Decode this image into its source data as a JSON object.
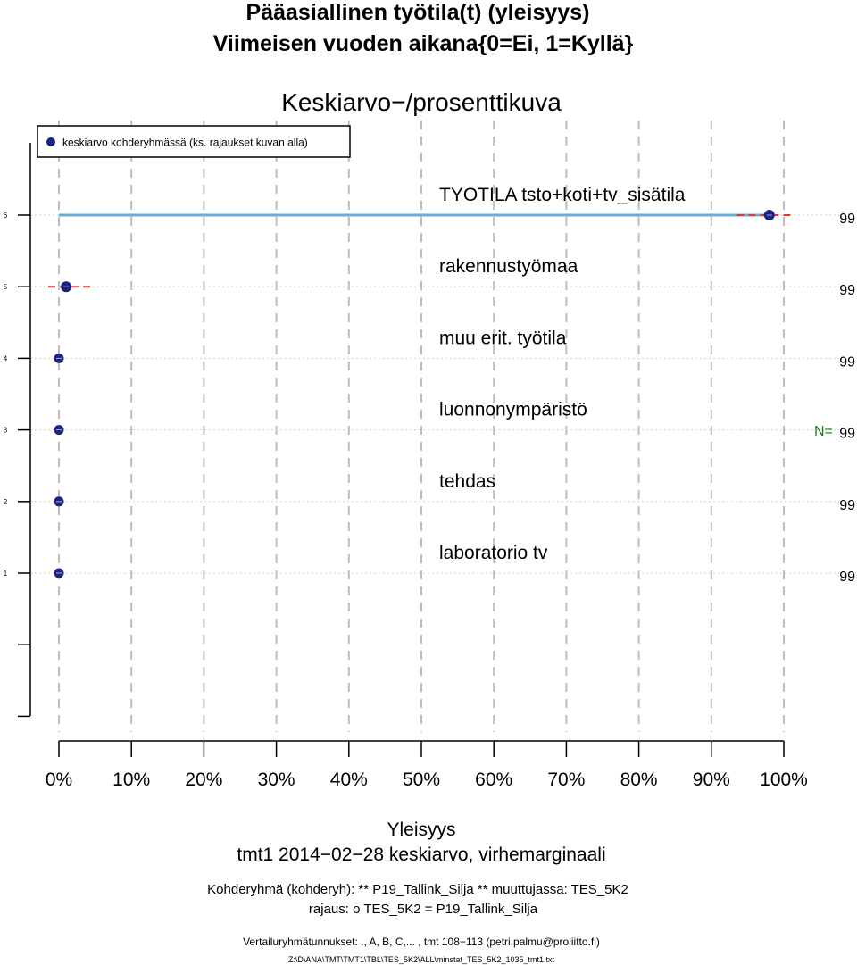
{
  "chart_data": {
    "type": "scatter",
    "title_line1": "Pääasiallinen työtila(t) (yleisyys)",
    "title_line2": "Viimeisen vuoden aikana{0=Ei, 1=Kyllä}",
    "subtitle": "Keskiarvo−/prosenttikuva",
    "legend_label": "keskiarvo kohderyhmässä (ks. rajaukset kuvan alla)",
    "n_label": "N=",
    "categories": [
      "TYOTILA tsto+koti+tv_sisätila",
      "rakennustyömaa",
      "muu erit. työtila",
      "luonnonympäristö",
      "tehdas",
      "laboratorio tv"
    ],
    "y_ticks": [
      "6",
      "5",
      "4",
      "3",
      "2",
      "1"
    ],
    "values": [
      98,
      1,
      0,
      0,
      0,
      0
    ],
    "error_low": [
      95,
      0,
      0,
      0,
      0,
      0
    ],
    "error_high": [
      100,
      3,
      0,
      0,
      0,
      0
    ],
    "bar_to_value": [
      true,
      false,
      false,
      false,
      false,
      false
    ],
    "n_values": [
      "99",
      "99",
      "99",
      "99",
      "99",
      "99"
    ],
    "x_ticks": [
      "0%",
      "10%",
      "20%",
      "30%",
      "40%",
      "50%",
      "60%",
      "70%",
      "80%",
      "90%",
      "100%"
    ],
    "xlim": [
      0,
      100
    ],
    "xlabel_line1": "Yleisyys",
    "xlabel_line2": "tmt1 2014−02−28 keskiarvo, virhemarginaali",
    "note_line1": "Kohderyhmä (kohderyh): ** P19_Tallink_Silja ** muuttujassa: TES_5K2",
    "note_line2": "rajaus: o TES_5K2 = P19_Tallink_Silja",
    "note_line3": "Vertailuryhmätunnukset: ., A, B, C,...   , tmt 108−113 (petri.palmu@proliitto.fi)",
    "note_line4": "Z:\\D\\ANA\\TMT\\TMT1\\TBL\\TES_5K2\\ALL\\minstat_TES_5K2_1035_tmt1.txt",
    "colors": {
      "point": "#1a237e",
      "bar": "#6aaed6",
      "error": "#e53935",
      "n_label": "#1b7a1b",
      "grid": "#bdbdbd"
    }
  }
}
